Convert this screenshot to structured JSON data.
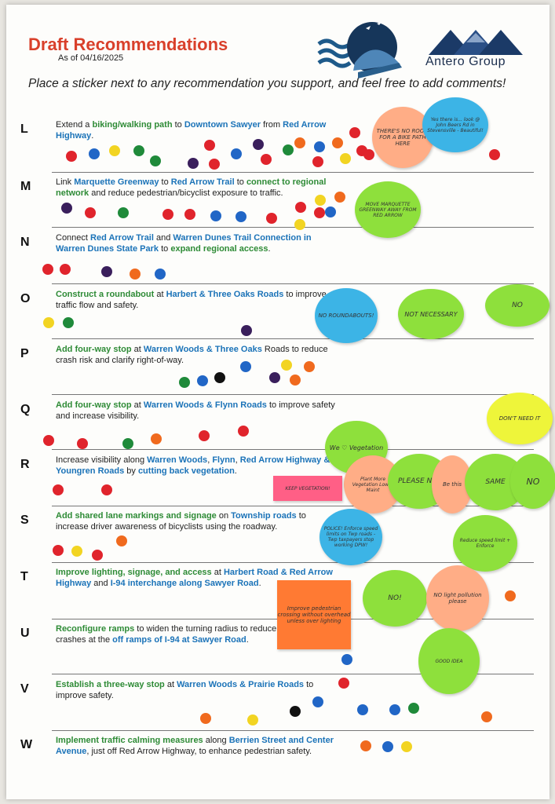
{
  "header": {
    "title": "Draft Recommendations",
    "as_of": "As of 04/16/2025",
    "instructions": "Place a sticker next to any recommendation you support, and feel free to add comments!",
    "org_name": "Antero Group"
  },
  "rows": [
    {
      "letter": "L",
      "segments": [
        [
          "Extend a ",
          ""
        ],
        [
          "biking/walking path",
          "g"
        ],
        [
          " to ",
          ""
        ],
        [
          "Downtown Sawyer",
          "b"
        ],
        [
          " from ",
          ""
        ],
        [
          "Red Arrow Highway",
          "b"
        ],
        [
          ".",
          ""
        ]
      ]
    },
    {
      "letter": "M",
      "segments": [
        [
          "Link ",
          ""
        ],
        [
          "Marquette Greenway",
          "b"
        ],
        [
          " to ",
          ""
        ],
        [
          "Red Arrow Trail",
          "b"
        ],
        [
          " to ",
          ""
        ],
        [
          "connect to regional network",
          "g"
        ],
        [
          " and reduce pedestrian/bicyclist exposure to traffic.",
          ""
        ]
      ]
    },
    {
      "letter": "N",
      "segments": [
        [
          "Connect ",
          ""
        ],
        [
          "Red Arrow Trail",
          "b"
        ],
        [
          " and ",
          ""
        ],
        [
          "Warren Dunes Trail Connection in Warren Dunes State Park",
          "b"
        ],
        [
          " to ",
          ""
        ],
        [
          "expand regional access",
          "g"
        ],
        [
          ".",
          ""
        ]
      ]
    },
    {
      "letter": "O",
      "segments": [
        [
          "Construct a roundabout",
          "g"
        ],
        [
          " at ",
          ""
        ],
        [
          "Harbert & Three Oaks Roads",
          "b"
        ],
        [
          " to improve traffic flow and safety.",
          ""
        ]
      ]
    },
    {
      "letter": "P",
      "segments": [
        [
          "Add four-way stop",
          "g"
        ],
        [
          " at ",
          ""
        ],
        [
          "Warren Woods & Three Oaks",
          "b"
        ],
        [
          " Roads to reduce crash risk and clarify right-of-way.",
          ""
        ]
      ]
    },
    {
      "letter": "Q",
      "segments": [
        [
          "Add four-way stop",
          "g"
        ],
        [
          " at ",
          ""
        ],
        [
          "Warren Woods & Flynn Roads",
          "b"
        ],
        [
          " to improve safety and increase visibility.",
          ""
        ]
      ]
    },
    {
      "letter": "R",
      "segments": [
        [
          "Increase visibility along ",
          ""
        ],
        [
          "Warren Woods",
          "b"
        ],
        [
          ", ",
          ""
        ],
        [
          "Flynn",
          "b"
        ],
        [
          ", ",
          ""
        ],
        [
          "Red Arrow Highway & Youngren Roads",
          "b"
        ],
        [
          " by ",
          ""
        ],
        [
          "cutting back vegetation",
          "b"
        ],
        [
          ".",
          ""
        ]
      ]
    },
    {
      "letter": "S",
      "segments": [
        [
          "Add shared lane markings and signage",
          "g"
        ],
        [
          " on ",
          ""
        ],
        [
          "Township roads",
          "b"
        ],
        [
          " to increase driver awareness of bicyclists using the roadway.",
          ""
        ]
      ]
    },
    {
      "letter": "T",
      "segments": [
        [
          "Improve lighting, signage, and access",
          "g"
        ],
        [
          " at ",
          ""
        ],
        [
          "Harbert Road & Red Arrow Highway",
          "b"
        ],
        [
          " and ",
          ""
        ],
        [
          "I-94 interchange along Sawyer Road",
          "b"
        ],
        [
          ".",
          ""
        ]
      ]
    },
    {
      "letter": "U",
      "segments": [
        [
          "Reconfigure ramps",
          "g"
        ],
        [
          " to widen the turning radius to reduce single vehicle crashes at the ",
          ""
        ],
        [
          "off ramps of I-94 at Sawyer Road",
          "b"
        ],
        [
          ".",
          ""
        ]
      ]
    },
    {
      "letter": "V",
      "segments": [
        [
          "Establish a three-way stop",
          "g"
        ],
        [
          " at ",
          ""
        ],
        [
          "Warren Woods & Prairie Roads",
          "b"
        ],
        [
          " to improve safety.",
          ""
        ]
      ]
    },
    {
      "letter": "W",
      "segments": [
        [
          "Implement traffic calming measures",
          "g"
        ],
        [
          " along ",
          ""
        ],
        [
          "Berrien Street and Center Avenue",
          "b"
        ],
        [
          ", just off Red Arrow Highway, to enhance pedestrian safety.",
          ""
        ]
      ]
    }
  ],
  "colors": {
    "red": "#e0242c",
    "blue": "#2166c6",
    "yellow": "#f2d422",
    "green": "#1f8a3a",
    "orange": "#f06a1e",
    "purple": "#3a1f5c",
    "black": "#111111",
    "bubble_orange": "#ffad86",
    "bubble_blue": "#3cb4e6",
    "bubble_green": "#8ee03c",
    "bubble_yellow": "#eef53a",
    "bubble_pink": "#ff5f86",
    "note_orange": "#ff7a33",
    "title_red": "#d9402b",
    "text_green": "#2e8b36",
    "text_blue": "#1b73b8"
  },
  "stickers": [
    {
      "row": "L",
      "color": "red"
    },
    {
      "row": "L",
      "color": "blue"
    },
    {
      "row": "L",
      "color": "yellow"
    },
    {
      "row": "L",
      "color": "green"
    },
    {
      "row": "L",
      "color": "green"
    },
    {
      "row": "L",
      "color": "purple"
    },
    {
      "row": "L",
      "color": "red"
    },
    {
      "row": "L",
      "color": "red"
    },
    {
      "row": "L",
      "color": "blue"
    },
    {
      "row": "L",
      "color": "purple"
    },
    {
      "row": "L",
      "color": "red"
    },
    {
      "row": "L",
      "color": "green"
    },
    {
      "row": "L",
      "color": "orange"
    },
    {
      "row": "L",
      "color": "blue"
    },
    {
      "row": "L",
      "color": "red"
    },
    {
      "row": "L",
      "color": "orange"
    },
    {
      "row": "L",
      "color": "yellow"
    },
    {
      "row": "L",
      "color": "red"
    },
    {
      "row": "L",
      "color": "red"
    },
    {
      "row": "L",
      "color": "red"
    },
    {
      "row": "L",
      "color": "orange"
    },
    {
      "row": "L",
      "color": "red"
    },
    {
      "row": "M",
      "color": "purple"
    },
    {
      "row": "M",
      "color": "red"
    },
    {
      "row": "M",
      "color": "green"
    },
    {
      "row": "M",
      "color": "red"
    },
    {
      "row": "M",
      "color": "red"
    },
    {
      "row": "M",
      "color": "blue"
    },
    {
      "row": "M",
      "color": "blue"
    },
    {
      "row": "M",
      "color": "red"
    },
    {
      "row": "M",
      "color": "red"
    },
    {
      "row": "M",
      "color": "yellow"
    },
    {
      "row": "M",
      "color": "red"
    },
    {
      "row": "M",
      "color": "blue"
    },
    {
      "row": "M",
      "color": "orange"
    },
    {
      "row": "M",
      "color": "yellow"
    },
    {
      "row": "N",
      "color": "red"
    },
    {
      "row": "N",
      "color": "red"
    },
    {
      "row": "N",
      "color": "purple"
    },
    {
      "row": "N",
      "color": "orange"
    },
    {
      "row": "N",
      "color": "blue"
    },
    {
      "row": "O",
      "color": "yellow"
    },
    {
      "row": "O",
      "color": "green"
    },
    {
      "row": "O",
      "color": "purple"
    },
    {
      "row": "O",
      "color": "blue"
    },
    {
      "row": "P",
      "color": "blue"
    },
    {
      "row": "P",
      "color": "yellow"
    },
    {
      "row": "P",
      "color": "orange"
    },
    {
      "row": "P",
      "color": "purple"
    },
    {
      "row": "P",
      "color": "orange"
    },
    {
      "row": "P",
      "color": "green"
    },
    {
      "row": "P",
      "color": "blue"
    },
    {
      "row": "P",
      "color": "black"
    },
    {
      "row": "Q",
      "color": "red"
    },
    {
      "row": "Q",
      "color": "red"
    },
    {
      "row": "Q",
      "color": "green"
    },
    {
      "row": "Q",
      "color": "orange"
    },
    {
      "row": "Q",
      "color": "red"
    },
    {
      "row": "Q",
      "color": "red"
    },
    {
      "row": "R",
      "color": "red"
    },
    {
      "row": "R",
      "color": "red"
    },
    {
      "row": "S",
      "color": "orange"
    },
    {
      "row": "S",
      "color": "red"
    },
    {
      "row": "S",
      "color": "yellow"
    },
    {
      "row": "S",
      "color": "red"
    },
    {
      "row": "S",
      "color": "yellow"
    },
    {
      "row": "S",
      "color": "blue"
    },
    {
      "row": "S",
      "color": "red"
    },
    {
      "row": "T",
      "color": "orange"
    },
    {
      "row": "U",
      "color": "blue"
    },
    {
      "row": "V",
      "color": "red"
    },
    {
      "row": "V",
      "color": "blue"
    },
    {
      "row": "V",
      "color": "orange"
    },
    {
      "row": "V",
      "color": "yellow"
    },
    {
      "row": "V",
      "color": "black"
    },
    {
      "row": "V",
      "color": "blue"
    },
    {
      "row": "V",
      "color": "blue"
    },
    {
      "row": "V",
      "color": "green"
    },
    {
      "row": "V",
      "color": "orange"
    },
    {
      "row": "W",
      "color": "orange"
    },
    {
      "row": "W",
      "color": "blue"
    },
    {
      "row": "W",
      "color": "yellow"
    }
  ],
  "comments": [
    {
      "row": "L",
      "color": "bubble_orange",
      "text": "THERE'S NO ROOM FOR A BIKE PATH HERE"
    },
    {
      "row": "L",
      "color": "bubble_blue",
      "text": "Yes there is... look @ John Beers Rd in Stevensville - Beautiful!"
    },
    {
      "row": "M",
      "color": "bubble_green",
      "text": "MOVE MARQUETTE GREENWAY AWAY FROM RED ARROW"
    },
    {
      "row": "O",
      "color": "bubble_blue",
      "text": "NO ROUNDABOUTS!"
    },
    {
      "row": "O",
      "color": "bubble_green",
      "text": "NOT NECESSARY"
    },
    {
      "row": "O",
      "color": "bubble_green",
      "text": "NO"
    },
    {
      "row": "Q",
      "color": "bubble_yellow",
      "text": "DON'T NEED IT"
    },
    {
      "row": "R",
      "color": "bubble_green",
      "text": "We ♡ Vegetation"
    },
    {
      "row": "R",
      "color": "bubble_orange",
      "text": "Plant More Vegetation Lower Maint"
    },
    {
      "row": "R",
      "color": "bubble_green",
      "text": "PLEASE NO!"
    },
    {
      "row": "R",
      "color": "bubble_orange",
      "text": "Be this"
    },
    {
      "row": "R",
      "color": "bubble_green",
      "text": "SAME"
    },
    {
      "row": "R",
      "color": "bubble_green",
      "text": "NO"
    },
    {
      "row": "R",
      "color": "bubble_pink",
      "text": "KEEP VEGETATION!"
    },
    {
      "row": "S",
      "color": "bubble_blue",
      "text": "POLICE! Enforce speed limits on Twp roads - Twp taxpayers stop working DPW!"
    },
    {
      "row": "S",
      "color": "bubble_green",
      "text": "Reduce speed limit + Enforce"
    },
    {
      "row": "T",
      "color": "note_orange",
      "text": "Improve pedestrian crossing without overhead unless over lighting"
    },
    {
      "row": "T",
      "color": "bubble_green",
      "text": "NO!"
    },
    {
      "row": "T",
      "color": "bubble_orange",
      "text": "NO light pollution please"
    },
    {
      "row": "U",
      "color": "bubble_green",
      "text": "GOOD IDEA"
    }
  ]
}
